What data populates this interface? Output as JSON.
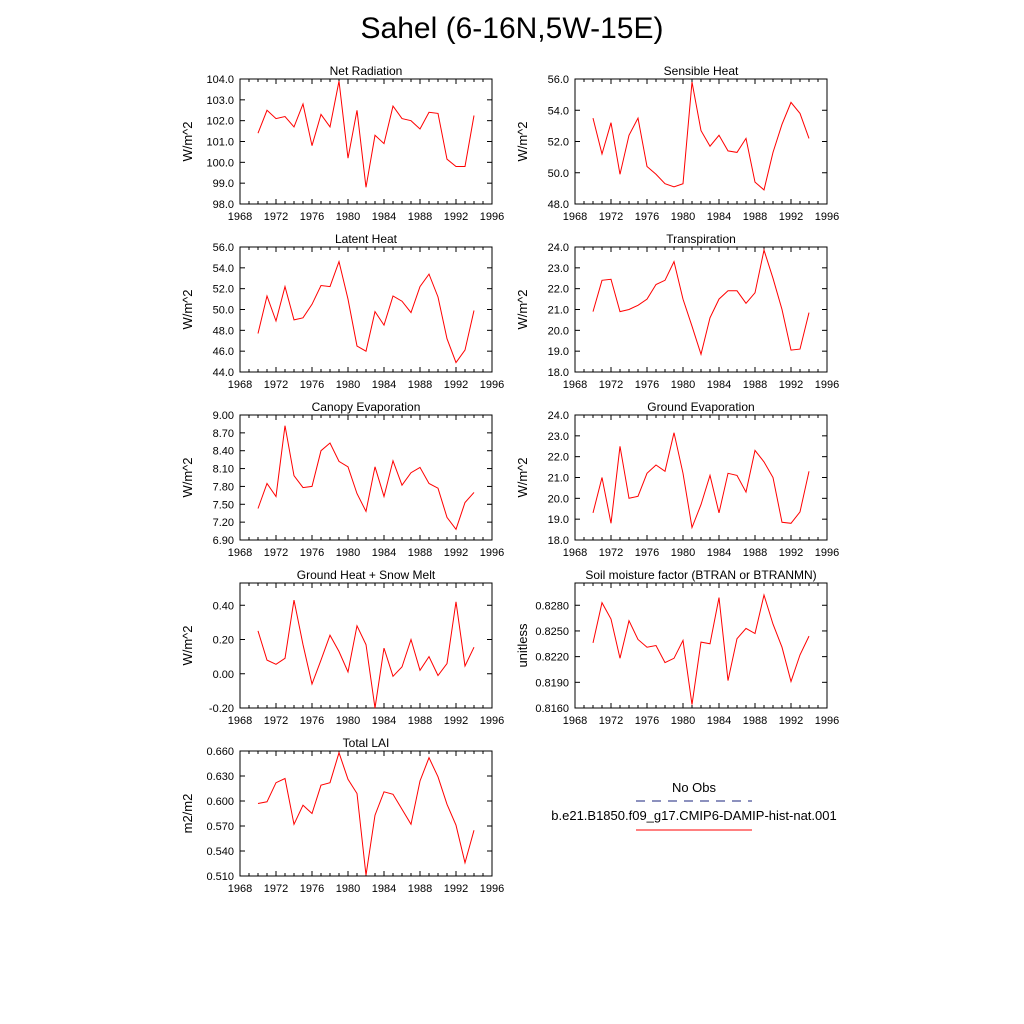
{
  "page_title": "Sahel (6-16N,5W-15E)",
  "colors": {
    "series": "#ff0000",
    "obs": "#1a237e",
    "axis": "#000000"
  },
  "legend": {
    "obs_label": "No Obs",
    "model_label": "b.e21.B1850.f09_g17.CMIP6-DAMIP-hist-nat.001"
  },
  "chart_data": [
    {
      "type": "line",
      "title": "Net Radiation",
      "ylabel": "W/m^2",
      "xlim": [
        1968,
        1996
      ],
      "xticks": [
        1968,
        1972,
        1976,
        1980,
        1984,
        1988,
        1992,
        1996
      ],
      "ylim": [
        98,
        104
      ],
      "yticks": [
        "98.0",
        "99.0",
        "100.0",
        "101.0",
        "102.0",
        "103.0",
        "104.0"
      ],
      "x": [
        1970,
        1971,
        1972,
        1973,
        1974,
        1975,
        1976,
        1977,
        1978,
        1979,
        1980,
        1981,
        1982,
        1983,
        1984,
        1985,
        1986,
        1987,
        1988,
        1989,
        1990,
        1991,
        1992,
        1993,
        1994
      ],
      "series": [
        {
          "values": [
            101.4,
            102.5,
            102.1,
            102.2,
            101.7,
            102.8,
            100.8,
            102.3,
            101.7,
            103.9,
            100.2,
            102.5,
            98.8,
            101.3,
            100.9,
            102.7,
            102.1,
            102.0,
            101.6,
            102.4,
            102.35,
            100.15,
            99.8,
            99.8,
            102.25
          ]
        }
      ]
    },
    {
      "type": "line",
      "title": "Sensible Heat",
      "ylabel": "W/m^2",
      "xlim": [
        1968,
        1996
      ],
      "xticks": [
        1968,
        1972,
        1976,
        1980,
        1984,
        1988,
        1992,
        1996
      ],
      "ylim": [
        48,
        56
      ],
      "yticks": [
        "48.0",
        "50.0",
        "52.0",
        "54.0",
        "56.0"
      ],
      "x": [
        1970,
        1971,
        1972,
        1973,
        1974,
        1975,
        1976,
        1977,
        1978,
        1979,
        1980,
        1981,
        1982,
        1983,
        1984,
        1985,
        1986,
        1987,
        1988,
        1989,
        1990,
        1991,
        1992,
        1993,
        1994
      ],
      "series": [
        {
          "values": [
            53.5,
            51.2,
            53.2,
            49.9,
            52.4,
            53.5,
            50.4,
            49.9,
            49.3,
            49.1,
            49.3,
            55.8,
            52.7,
            51.7,
            52.4,
            51.4,
            51.3,
            52.2,
            49.4,
            48.9,
            51.3,
            53.1,
            54.5,
            53.8,
            52.2
          ]
        }
      ]
    },
    {
      "type": "line",
      "title": "Latent Heat",
      "ylabel": "W/m^2",
      "xlim": [
        1968,
        1996
      ],
      "xticks": [
        1968,
        1972,
        1976,
        1980,
        1984,
        1988,
        1992,
        1996
      ],
      "ylim": [
        44,
        56
      ],
      "yticks": [
        "44.0",
        "46.0",
        "48.0",
        "50.0",
        "52.0",
        "54.0",
        "56.0"
      ],
      "x": [
        1970,
        1971,
        1972,
        1973,
        1974,
        1975,
        1976,
        1977,
        1978,
        1979,
        1980,
        1981,
        1982,
        1983,
        1984,
        1985,
        1986,
        1987,
        1988,
        1989,
        1990,
        1991,
        1992,
        1993,
        1994
      ],
      "series": [
        {
          "values": [
            47.7,
            51.3,
            48.9,
            52.2,
            49.0,
            49.2,
            50.5,
            52.3,
            52.2,
            54.6,
            51.0,
            46.5,
            46.0,
            49.8,
            48.5,
            51.3,
            50.8,
            49.7,
            52.2,
            53.4,
            51.2,
            47.2,
            44.9,
            46.1,
            49.9
          ]
        }
      ]
    },
    {
      "type": "line",
      "title": "Transpiration",
      "ylabel": "W/m^2",
      "xlim": [
        1968,
        1996
      ],
      "xticks": [
        1968,
        1972,
        1976,
        1980,
        1984,
        1988,
        1992,
        1996
      ],
      "ylim": [
        18,
        24
      ],
      "yticks": [
        "18.0",
        "19.0",
        "20.0",
        "21.0",
        "22.0",
        "23.0",
        "24.0"
      ],
      "x": [
        1970,
        1971,
        1972,
        1973,
        1974,
        1975,
        1976,
        1977,
        1978,
        1979,
        1980,
        1981,
        1982,
        1983,
        1984,
        1985,
        1986,
        1987,
        1988,
        1989,
        1990,
        1991,
        1992,
        1993,
        1994
      ],
      "series": [
        {
          "values": [
            20.9,
            22.4,
            22.45,
            20.9,
            21.0,
            21.2,
            21.5,
            22.2,
            22.4,
            23.3,
            21.5,
            20.2,
            18.85,
            20.6,
            21.5,
            21.9,
            21.9,
            21.3,
            21.8,
            23.85,
            22.5,
            21.0,
            19.05,
            19.1,
            20.85
          ]
        }
      ]
    },
    {
      "type": "line",
      "title": "Canopy Evaporation",
      "ylabel": "W/m^2",
      "xlim": [
        1968,
        1996
      ],
      "xticks": [
        1968,
        1972,
        1976,
        1980,
        1984,
        1988,
        1992,
        1996
      ],
      "ylim": [
        6.9,
        9.0
      ],
      "yticks": [
        "6.90",
        "7.20",
        "7.50",
        "7.80",
        "8.10",
        "8.40",
        "8.70",
        "9.00"
      ],
      "x": [
        1970,
        1971,
        1972,
        1973,
        1974,
        1975,
        1976,
        1977,
        1978,
        1979,
        1980,
        1981,
        1982,
        1983,
        1984,
        1985,
        1986,
        1987,
        1988,
        1989,
        1990,
        1991,
        1992,
        1993,
        1994
      ],
      "series": [
        {
          "values": [
            7.43,
            7.85,
            7.63,
            8.82,
            7.98,
            7.78,
            7.8,
            8.4,
            8.53,
            8.22,
            8.13,
            7.68,
            7.38,
            8.13,
            7.63,
            8.23,
            7.82,
            8.03,
            8.12,
            7.85,
            7.77,
            7.28,
            7.08,
            7.53,
            7.7
          ]
        }
      ]
    },
    {
      "type": "line",
      "title": "Ground Evaporation",
      "ylabel": "W/m^2",
      "xlim": [
        1968,
        1996
      ],
      "xticks": [
        1968,
        1972,
        1976,
        1980,
        1984,
        1988,
        1992,
        1996
      ],
      "ylim": [
        18,
        24
      ],
      "yticks": [
        "18.0",
        "19.0",
        "20.0",
        "21.0",
        "22.0",
        "23.0",
        "24.0"
      ],
      "x": [
        1970,
        1971,
        1972,
        1973,
        1974,
        1975,
        1976,
        1977,
        1978,
        1979,
        1980,
        1981,
        1982,
        1983,
        1984,
        1985,
        1986,
        1987,
        1988,
        1989,
        1990,
        1991,
        1992,
        1993,
        1994
      ],
      "series": [
        {
          "values": [
            19.3,
            21.0,
            18.8,
            22.5,
            20.0,
            20.1,
            21.2,
            21.6,
            21.3,
            23.15,
            21.2,
            18.6,
            19.7,
            21.1,
            19.3,
            21.2,
            21.1,
            20.3,
            22.3,
            21.75,
            21.0,
            18.85,
            18.8,
            19.35,
            21.3
          ]
        }
      ]
    },
    {
      "type": "line",
      "title": "Ground Heat + Snow Melt",
      "ylabel": "W/m^2",
      "xlim": [
        1968,
        1996
      ],
      "xticks": [
        1968,
        1972,
        1976,
        1980,
        1984,
        1988,
        1992,
        1996
      ],
      "ylim": [
        -0.2,
        0.53
      ],
      "yticks": [
        "-0.20",
        "0.00",
        "0.20",
        "0.40"
      ],
      "ytick_values": [
        -0.2,
        0.0,
        0.2,
        0.4
      ],
      "x": [
        1970,
        1971,
        1972,
        1973,
        1974,
        1975,
        1976,
        1977,
        1978,
        1979,
        1980,
        1981,
        1982,
        1983,
        1984,
        1985,
        1986,
        1987,
        1988,
        1989,
        1990,
        1991,
        1992,
        1993,
        1994
      ],
      "series": [
        {
          "values": [
            0.25,
            0.08,
            0.055,
            0.09,
            0.43,
            0.17,
            -0.06,
            0.08,
            0.225,
            0.13,
            0.01,
            0.28,
            0.17,
            -0.2,
            0.15,
            -0.015,
            0.04,
            0.2,
            0.02,
            0.1,
            -0.01,
            0.06,
            0.42,
            0.045,
            0.155
          ]
        }
      ]
    },
    {
      "type": "line",
      "title": "Soil moisture factor (BTRAN or BTRANMN)",
      "ylabel": "unitless",
      "xlim": [
        1968,
        1996
      ],
      "xticks": [
        1968,
        1972,
        1976,
        1980,
        1984,
        1988,
        1992,
        1996
      ],
      "ylim": [
        0.816,
        0.8306
      ],
      "yticks": [
        "0.8160",
        "0.8190",
        "0.8220",
        "0.8250",
        "0.8280"
      ],
      "ytick_values": [
        0.816,
        0.819,
        0.822,
        0.825,
        0.828
      ],
      "x": [
        1970,
        1971,
        1972,
        1973,
        1974,
        1975,
        1976,
        1977,
        1978,
        1979,
        1980,
        1981,
        1982,
        1983,
        1984,
        1985,
        1986,
        1987,
        1988,
        1989,
        1990,
        1991,
        1992,
        1993,
        1994
      ],
      "series": [
        {
          "values": [
            0.8236,
            0.8283,
            0.8264,
            0.8218,
            0.8262,
            0.824,
            0.8231,
            0.8233,
            0.8213,
            0.8218,
            0.8239,
            0.8164,
            0.8237,
            0.8235,
            0.8289,
            0.8192,
            0.8241,
            0.8253,
            0.8247,
            0.8292,
            0.8258,
            0.8231,
            0.8191,
            0.8222,
            0.8244
          ]
        }
      ]
    },
    {
      "type": "line",
      "title": "Total LAI",
      "ylabel": "m2/m2",
      "xlim": [
        1968,
        1996
      ],
      "xticks": [
        1968,
        1972,
        1976,
        1980,
        1984,
        1988,
        1992,
        1996
      ],
      "ylim": [
        0.51,
        0.66
      ],
      "yticks": [
        "0.510",
        "0.540",
        "0.570",
        "0.600",
        "0.630",
        "0.660"
      ],
      "x": [
        1970,
        1971,
        1972,
        1973,
        1974,
        1975,
        1976,
        1977,
        1978,
        1979,
        1980,
        1981,
        1982,
        1983,
        1984,
        1985,
        1986,
        1987,
        1988,
        1989,
        1990,
        1991,
        1992,
        1993,
        1994
      ],
      "series": [
        {
          "values": [
            0.597,
            0.599,
            0.622,
            0.627,
            0.572,
            0.595,
            0.585,
            0.619,
            0.622,
            0.658,
            0.626,
            0.609,
            0.511,
            0.583,
            0.611,
            0.608,
            0.59,
            0.572,
            0.624,
            0.652,
            0.629,
            0.596,
            0.571,
            0.526,
            0.565
          ]
        }
      ]
    }
  ]
}
